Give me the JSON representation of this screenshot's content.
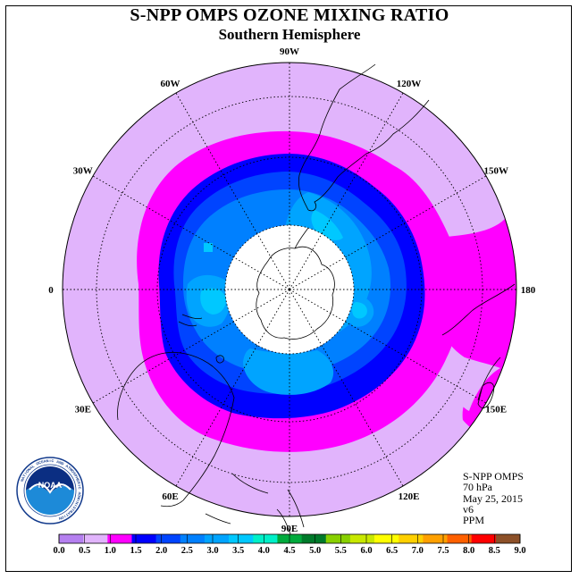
{
  "title": "S-NPP OMPS OZONE MIXING RATIO",
  "subtitle": "Southern Hemisphere",
  "info": {
    "line1": "S-NPP OMPS",
    "line2": "70 hPa",
    "line3": "May 25, 2015",
    "line4": "v6",
    "line5": "PPM"
  },
  "longitude_labels": [
    "90W",
    "60W",
    "30W",
    "0",
    "30E",
    "60E",
    "90E",
    "120E",
    "150E",
    "180",
    "150W",
    "120W"
  ],
  "logo": {
    "text": "NOAA"
  },
  "colorbar": {
    "ticks": [
      "0.0",
      "0.5",
      "1.0",
      "1.5",
      "2.0",
      "2.5",
      "3.0",
      "3.5",
      "4.0",
      "4.5",
      "5.0",
      "5.5",
      "6.0",
      "6.5",
      "7.0",
      "7.5",
      "8.0",
      "8.5",
      "9.0"
    ],
    "colors": [
      "#b580f0",
      "#e1b4fc",
      "#ff00ff",
      "#0000ff",
      "#0044ff",
      "#0080ff",
      "#00a4ff",
      "#00c8ff",
      "#00f0c8",
      "#00aa3c",
      "#007a2a",
      "#88d000",
      "#c8e800",
      "#ffff00",
      "#ffd000",
      "#ffa000",
      "#ff6000",
      "#ff0000",
      "#8c5028"
    ]
  },
  "map_colors": {
    "outer": "#e1b4fc",
    "band_1_0": "#ff00ff",
    "band_1_5": "#0000ff",
    "band_2_0": "#0044ff",
    "band_2_5": "#0080ff",
    "band_3_0": "#00a4ff",
    "band_3_5": "#00c8ff",
    "pole_mask": "#ffffff"
  }
}
